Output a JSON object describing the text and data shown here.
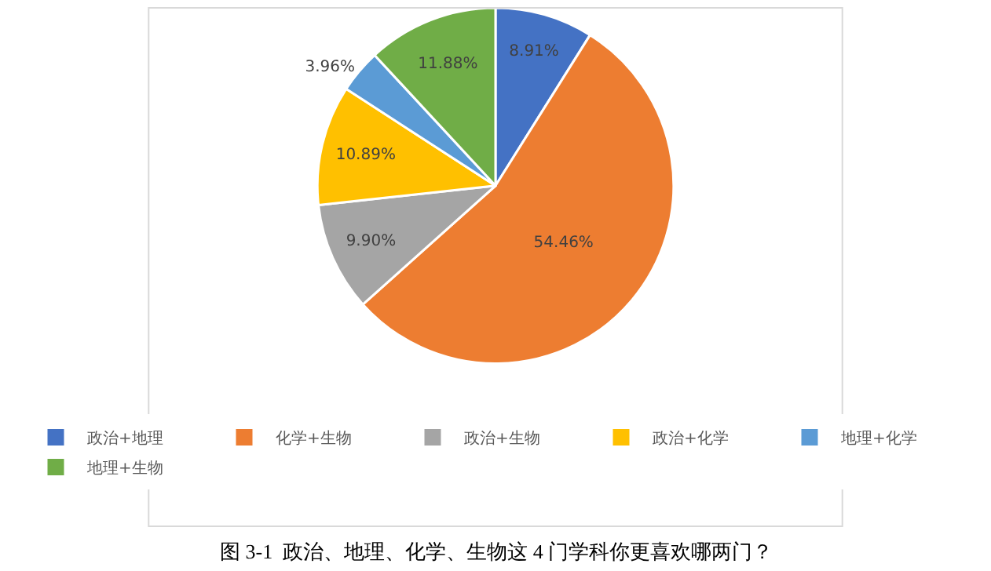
{
  "chart_data": {
    "type": "pie",
    "categories": [
      "政治+地理",
      "化学+生物",
      "政治+生物",
      "政治+化学",
      "地理+化学",
      "地理+生物"
    ],
    "values": [
      8.91,
      54.46,
      9.9,
      10.89,
      3.96,
      11.88
    ],
    "value_labels": [
      "8.91%",
      "54.46%",
      "9.90%",
      "10.89%",
      "3.96%",
      "11.88%"
    ],
    "colors": [
      "#4472c4",
      "#ed7d31",
      "#a5a5a5",
      "#ffc000",
      "#5b9bd5",
      "#70ad47"
    ],
    "legend": "bottom",
    "annotations": [
      "图 3-1  政治、地理、化学、生物这 4 门学科你更喜欢哪两门？"
    ]
  }
}
